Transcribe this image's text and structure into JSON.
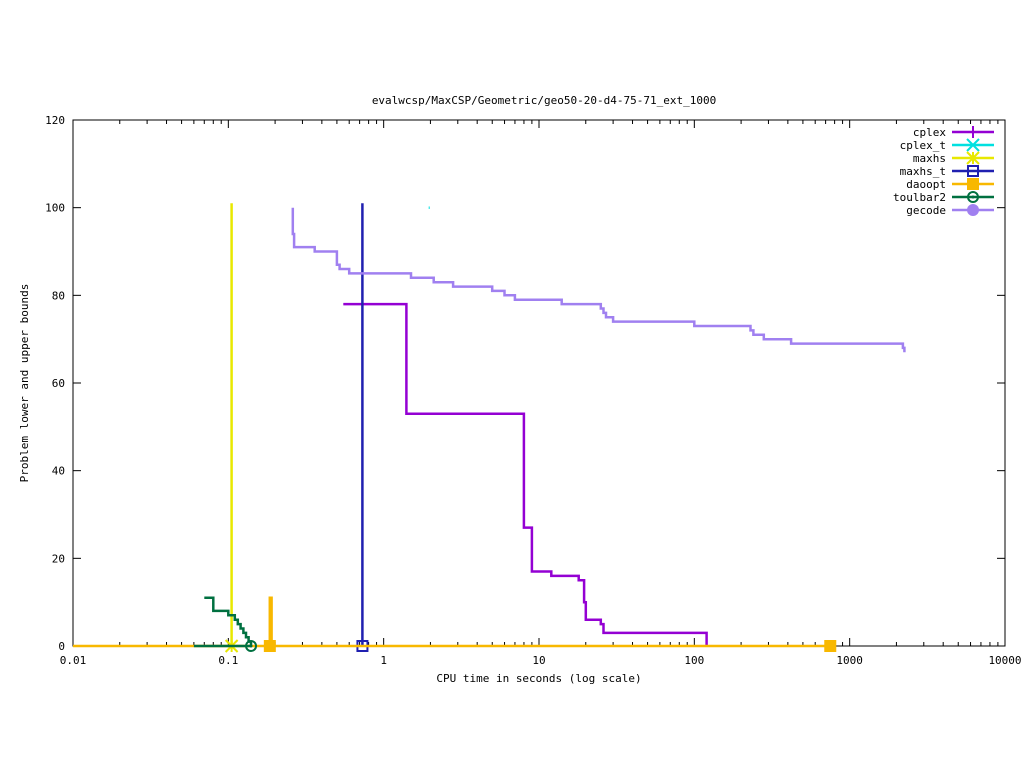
{
  "chart_data": {
    "type": "line",
    "title": "evalwcsp/MaxCSP/Geometric/geo50-20-d4-75-71_ext_1000",
    "xlabel": "CPU time in seconds (log scale)",
    "ylabel": "Problem lower and upper bounds",
    "xscale": "log",
    "xlim": [
      0.01,
      10000
    ],
    "ylim": [
      0,
      120
    ],
    "xticks": [
      0.01,
      0.1,
      1,
      10,
      100,
      1000,
      10000
    ],
    "xtick_labels": [
      "0.01",
      "0.1",
      "1",
      "10",
      "100",
      "1000",
      "10000"
    ],
    "yticks": [
      0,
      20,
      40,
      60,
      80,
      100,
      120
    ],
    "ytick_labels": [
      "0",
      "20",
      "40",
      "60",
      "80",
      "100",
      "120"
    ],
    "legend_position": "top-right",
    "series": [
      {
        "name": "cplex",
        "color": "#9400d3",
        "marker": "plus",
        "points": [
          [
            0.55,
            78
          ],
          [
            1.4,
            78
          ],
          [
            1.4,
            53
          ],
          [
            8,
            53
          ],
          [
            8,
            27
          ],
          [
            9,
            27
          ],
          [
            9,
            17
          ],
          [
            12,
            17
          ],
          [
            12,
            16
          ],
          [
            18,
            16
          ],
          [
            18,
            15
          ],
          [
            19.5,
            15
          ],
          [
            19.5,
            10
          ],
          [
            20,
            10
          ],
          [
            20,
            6
          ],
          [
            25,
            6
          ],
          [
            25,
            5
          ],
          [
            26,
            5
          ],
          [
            26,
            3
          ],
          [
            120,
            3
          ],
          [
            120,
            0
          ]
        ]
      },
      {
        "name": "cplex_t",
        "color": "#00e0e0",
        "marker": "x",
        "points": [
          [
            1.95,
            100
          ],
          [
            1.98,
            100
          ]
        ]
      },
      {
        "name": "maxhs",
        "color": "#e8e800",
        "marker": "star",
        "points": [
          [
            0.105,
            0
          ],
          [
            0.105,
            101
          ]
        ]
      },
      {
        "name": "maxhs_t",
        "color": "#2020b0",
        "marker": "square",
        "points": [
          [
            0.73,
            0
          ],
          [
            0.73,
            101
          ]
        ]
      },
      {
        "name": "daoopt",
        "color": "#f8b800",
        "marker": "filled-square",
        "points": [
          [
            0.01,
            0
          ],
          [
            0.185,
            0
          ],
          [
            0.185,
            11
          ],
          [
            0.19,
            11
          ],
          [
            0.19,
            0
          ],
          [
            750,
            0
          ]
        ],
        "markers_at": [
          [
            0.185,
            0
          ],
          [
            750,
            0
          ]
        ]
      },
      {
        "name": "toulbar2",
        "color": "#007040",
        "marker": "circle",
        "points": [
          [
            0.06,
            0
          ],
          [
            0.14,
            0
          ]
        ],
        "lower_steps": [
          [
            0.07,
            11
          ],
          [
            0.08,
            11
          ],
          [
            0.08,
            8
          ],
          [
            0.1,
            8
          ],
          [
            0.1,
            7
          ],
          [
            0.11,
            7
          ],
          [
            0.11,
            6
          ],
          [
            0.115,
            6
          ],
          [
            0.115,
            5
          ],
          [
            0.12,
            5
          ],
          [
            0.12,
            4
          ],
          [
            0.125,
            4
          ],
          [
            0.125,
            3
          ],
          [
            0.13,
            3
          ],
          [
            0.13,
            2
          ],
          [
            0.135,
            2
          ],
          [
            0.135,
            1
          ],
          [
            0.14,
            1
          ],
          [
            0.14,
            0
          ]
        ],
        "markers_at": [
          [
            0.14,
            0
          ]
        ]
      },
      {
        "name": "gecode",
        "color": "#a080f0",
        "marker": "filled-circle",
        "points": [
          [
            0.26,
            100
          ],
          [
            0.26,
            94
          ],
          [
            0.265,
            94
          ],
          [
            0.265,
            91
          ],
          [
            0.36,
            91
          ],
          [
            0.36,
            90
          ],
          [
            0.5,
            90
          ],
          [
            0.5,
            87
          ],
          [
            0.52,
            87
          ],
          [
            0.52,
            86
          ],
          [
            0.6,
            86
          ],
          [
            0.6,
            85
          ],
          [
            1.5,
            85
          ],
          [
            1.5,
            84
          ],
          [
            2.1,
            84
          ],
          [
            2.1,
            83
          ],
          [
            2.8,
            83
          ],
          [
            2.8,
            82
          ],
          [
            5,
            82
          ],
          [
            5,
            81
          ],
          [
            6,
            81
          ],
          [
            6,
            80
          ],
          [
            7,
            80
          ],
          [
            7,
            79
          ],
          [
            14,
            79
          ],
          [
            14,
            78
          ],
          [
            25,
            78
          ],
          [
            25,
            77
          ],
          [
            26,
            77
          ],
          [
            26,
            76
          ],
          [
            27,
            76
          ],
          [
            27,
            75
          ],
          [
            30,
            75
          ],
          [
            30,
            74
          ],
          [
            100,
            74
          ],
          [
            100,
            73
          ],
          [
            230,
            73
          ],
          [
            230,
            72
          ],
          [
            240,
            72
          ],
          [
            240,
            71
          ],
          [
            280,
            71
          ],
          [
            280,
            70
          ],
          [
            420,
            70
          ],
          [
            420,
            69
          ],
          [
            2200,
            69
          ],
          [
            2200,
            68
          ],
          [
            2250,
            68
          ],
          [
            2250,
            67
          ]
        ]
      }
    ]
  }
}
